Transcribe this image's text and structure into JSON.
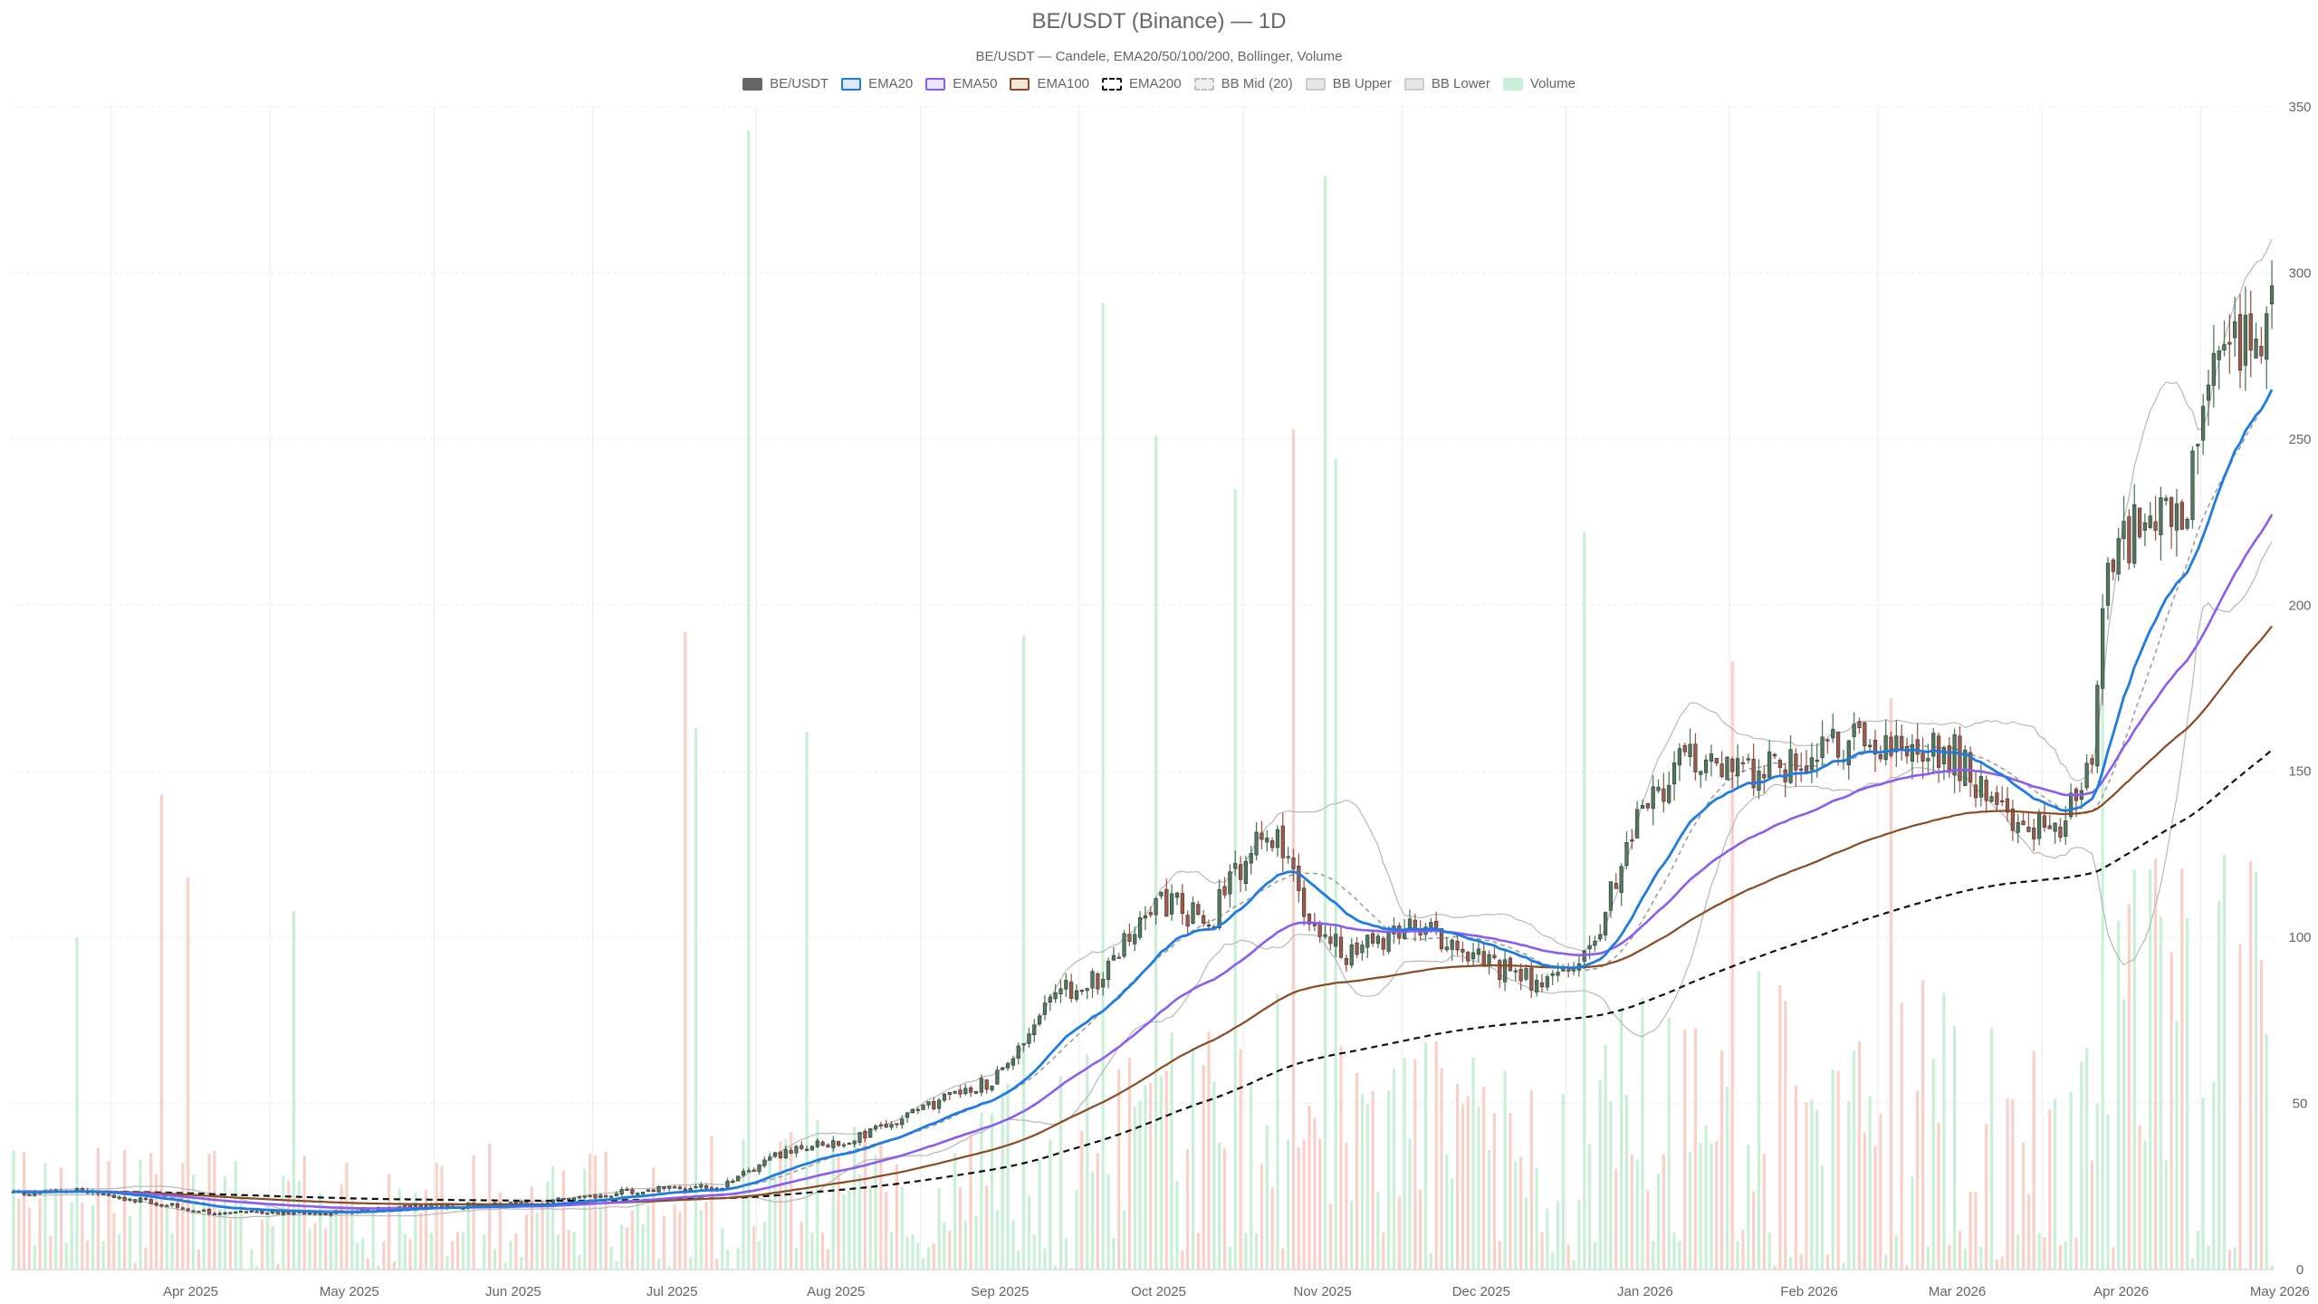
{
  "title": "BE/USDT (Binance) — 1D",
  "subtitle": "BE/USDT — Candele, EMA20/50/100/200, Bollinger, Volume",
  "legend": [
    {
      "label": "BE/USDT",
      "icon": "candles-swatch",
      "fill": "#666666",
      "stroke": "#666666",
      "dashed": false
    },
    {
      "label": "EMA20",
      "icon": "line-swatch",
      "fill": "#dbe9f7",
      "stroke": "#1e7be0",
      "dashed": false
    },
    {
      "label": "EMA50",
      "icon": "line-swatch",
      "fill": "#ece4fb",
      "stroke": "#8a5cf0",
      "dashed": false
    },
    {
      "label": "EMA100",
      "icon": "line-swatch",
      "fill": "#f3e6dd",
      "stroke": "#8b4a23",
      "dashed": false
    },
    {
      "label": "EMA200",
      "icon": "line-swatch",
      "fill": "#ffffff",
      "stroke": "#111111",
      "dashed": true
    },
    {
      "label": "BB Mid (20)",
      "icon": "line-swatch",
      "fill": "#eeeeee",
      "stroke": "#bbbbbb",
      "dashed": true
    },
    {
      "label": "BB Upper",
      "icon": "line-swatch",
      "fill": "#e6e6e6",
      "stroke": "#cccccc",
      "dashed": false
    },
    {
      "label": "BB Lower",
      "icon": "line-swatch",
      "fill": "#e6e6e6",
      "stroke": "#cccccc",
      "dashed": false
    },
    {
      "label": "Volume",
      "icon": "volume-swatch",
      "fill": "#c9efd9",
      "stroke": "#c9efd9",
      "dashed": false
    }
  ],
  "colors": {
    "up": "#4f7a5b",
    "down": "#a05a4a",
    "vol_up": "#bfecd0",
    "vol_down": "#f8c9c0",
    "ema20": "#1e7be0",
    "ema50": "#8a5cf0",
    "ema100": "#8b4a23",
    "ema200": "#111111",
    "bb_mid": "#999999",
    "bb_band": "#b8b8b8",
    "grid": "#ebebeb"
  },
  "chart_data": {
    "type": "candlestick",
    "x_start": "2025-03-13",
    "x_end": "2026-05-14",
    "y_range": [
      0,
      350
    ],
    "y_ticks": [
      "0",
      "50",
      "100",
      "150",
      "200",
      "250",
      "300",
      "350"
    ],
    "x_ticks": [
      "Apr 2025",
      "May 2025",
      "Jun 2025",
      "Jul 2025",
      "Aug 2025",
      "Sep 2025",
      "Oct 2025",
      "Nov 2025",
      "Dec 2025",
      "Jan 2026",
      "Feb 2026",
      "Mar 2026",
      "Apr 2026",
      "May 2026"
    ],
    "close_anchors": [
      [
        "2025-03-13",
        23
      ],
      [
        "2025-03-25",
        24
      ],
      [
        "2025-04-05",
        21
      ],
      [
        "2025-04-20",
        17
      ],
      [
        "2025-05-10",
        17
      ],
      [
        "2025-06-01",
        19
      ],
      [
        "2025-06-20",
        20
      ],
      [
        "2025-07-10",
        24
      ],
      [
        "2025-07-25",
        25
      ],
      [
        "2025-08-05",
        35
      ],
      [
        "2025-08-20",
        40
      ],
      [
        "2025-09-01",
        48
      ],
      [
        "2025-09-15",
        58
      ],
      [
        "2025-09-25",
        82
      ],
      [
        "2025-10-05",
        88
      ],
      [
        "2025-10-15",
        112
      ],
      [
        "2025-10-25",
        105
      ],
      [
        "2025-11-05",
        135
      ],
      [
        "2025-11-15",
        100
      ],
      [
        "2025-11-20",
        95
      ],
      [
        "2025-11-28",
        100
      ],
      [
        "2025-12-05",
        103
      ],
      [
        "2025-12-15",
        95
      ],
      [
        "2025-12-22",
        88
      ],
      [
        "2026-01-01",
        87
      ],
      [
        "2026-01-05",
        95
      ],
      [
        "2026-01-15",
        140
      ],
      [
        "2026-01-25",
        155
      ],
      [
        "2026-02-05",
        150
      ],
      [
        "2026-02-15",
        155
      ],
      [
        "2026-02-25",
        160
      ],
      [
        "2026-03-05",
        155
      ],
      [
        "2026-03-15",
        155
      ],
      [
        "2026-03-25",
        135
      ],
      [
        "2026-04-05",
        135
      ],
      [
        "2026-04-10",
        155
      ],
      [
        "2026-04-13",
        215
      ],
      [
        "2026-04-20",
        225
      ],
      [
        "2026-04-28",
        230
      ],
      [
        "2026-05-03",
        285
      ],
      [
        "2026-05-08",
        275
      ],
      [
        "2026-05-14",
        290
      ]
    ],
    "volume_range": [
      0,
      345
    ],
    "volume_peaks": [
      [
        "2025-03-25",
        100
      ],
      [
        "2025-04-10",
        143
      ],
      [
        "2025-04-15",
        118
      ],
      [
        "2025-05-05",
        108
      ],
      [
        "2025-07-18",
        192
      ],
      [
        "2025-07-20",
        163
      ],
      [
        "2025-07-30",
        343
      ],
      [
        "2025-08-10",
        162
      ],
      [
        "2025-09-20",
        191
      ],
      [
        "2025-10-05",
        291
      ],
      [
        "2025-10-15",
        251
      ],
      [
        "2025-10-30",
        235
      ],
      [
        "2025-11-10",
        253
      ],
      [
        "2025-11-16",
        329
      ],
      [
        "2025-11-18",
        244
      ],
      [
        "2026-01-04",
        222
      ],
      [
        "2026-02-01",
        183
      ],
      [
        "2026-03-03",
        172
      ],
      [
        "2026-04-12",
        170
      ],
      [
        "2026-05-05",
        125
      ]
    ],
    "series": [
      {
        "name": "BE/USDT",
        "kind": "candles"
      },
      {
        "name": "EMA20",
        "kind": "ema",
        "period": 20,
        "last": 260
      },
      {
        "name": "EMA50",
        "kind": "ema",
        "period": 50,
        "last": 218
      },
      {
        "name": "EMA100",
        "kind": "ema",
        "period": 100,
        "last": 181
      },
      {
        "name": "EMA200",
        "kind": "ema",
        "period": 200,
        "last": 140
      },
      {
        "name": "BB Mid (20)",
        "kind": "bb_mid",
        "period": 20
      },
      {
        "name": "BB Upper",
        "kind": "bb_upper",
        "period": 20
      },
      {
        "name": "BB Lower",
        "kind": "bb_lower",
        "period": 20
      },
      {
        "name": "Volume",
        "kind": "volume"
      }
    ]
  }
}
